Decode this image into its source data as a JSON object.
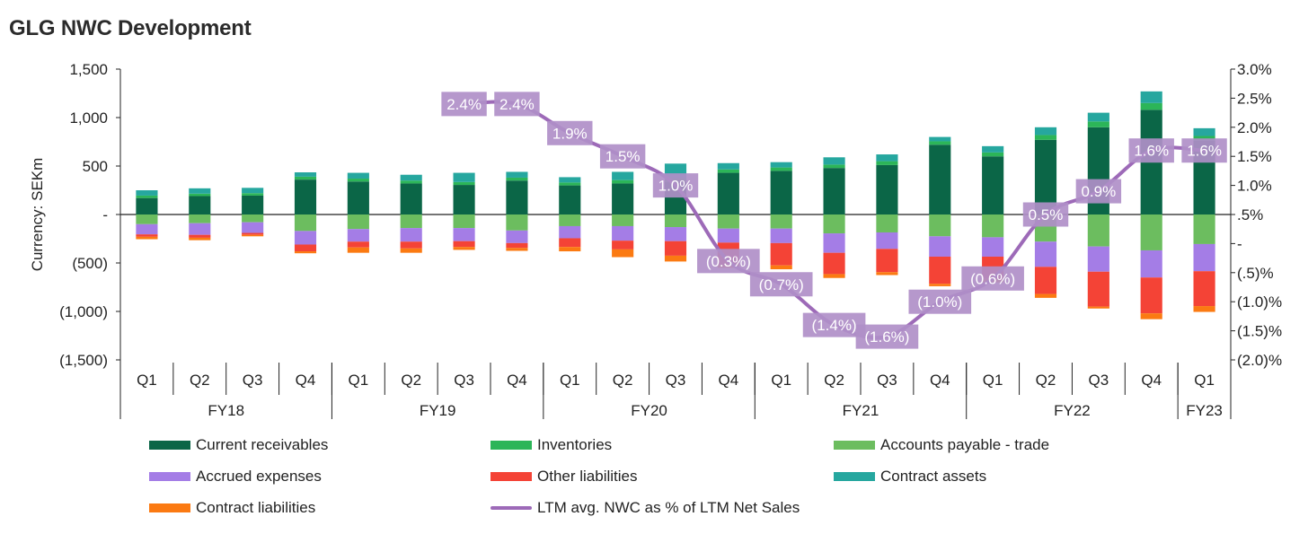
{
  "title": "GLG NWC Development",
  "chart_data": {
    "type": "bar",
    "stacked": true,
    "title": "GLG NWC Development",
    "ylabel": "Currency: SEKm",
    "ylim": [
      -1500,
      1500
    ],
    "y_ticks": [
      1500,
      1000,
      500,
      0,
      -500,
      -1000,
      -1500
    ],
    "y_tick_labels": [
      "1,500",
      "1,000",
      "500",
      "-",
      "(500)",
      "(1,000)",
      "(1,500)"
    ],
    "y2lim": [
      -2.0,
      3.0
    ],
    "y2_ticks": [
      3.0,
      2.5,
      2.0,
      1.5,
      1.0,
      0.5,
      0,
      -0.5,
      -1.0,
      -1.5,
      -2.0
    ],
    "y2_tick_labels": [
      "3.0%",
      "2.5%",
      "2.0%",
      "1.5%",
      "1.0%",
      ".5%",
      "-",
      "(.5)%",
      "(1.0)%",
      "(1.5)%",
      "(2.0)%"
    ],
    "categories": [
      "Q1",
      "Q2",
      "Q3",
      "Q4",
      "Q1",
      "Q2",
      "Q3",
      "Q4",
      "Q1",
      "Q2",
      "Q3",
      "Q4",
      "Q1",
      "Q2",
      "Q3",
      "Q4",
      "Q1",
      "Q2",
      "Q3",
      "Q4",
      "Q1"
    ],
    "year_groups": [
      {
        "label": "FY18",
        "count": 4
      },
      {
        "label": "FY19",
        "count": 4
      },
      {
        "label": "FY20",
        "count": 4
      },
      {
        "label": "FY21",
        "count": 4
      },
      {
        "label": "FY22",
        "count": 4
      },
      {
        "label": "FY23",
        "count": 1
      }
    ],
    "series": [
      {
        "name": "Current receivables",
        "color": "#0b6647",
        "values": [
          170,
          190,
          195,
          360,
          340,
          320,
          305,
          350,
          300,
          320,
          340,
          430,
          450,
          480,
          510,
          720,
          600,
          770,
          900,
          1080,
          760
        ]
      },
      {
        "name": "Inventories",
        "color": "#2cb558",
        "values": [
          25,
          25,
          25,
          30,
          30,
          30,
          30,
          30,
          30,
          35,
          35,
          35,
          35,
          35,
          40,
          35,
          40,
          50,
          60,
          70,
          50
        ]
      },
      {
        "name": "Contract assets",
        "color": "#26a79f",
        "values": [
          55,
          55,
          55,
          45,
          60,
          60,
          95,
          60,
          55,
          85,
          150,
          65,
          55,
          75,
          70,
          45,
          65,
          80,
          90,
          120,
          80
        ]
      },
      {
        "name": "Accounts payable - trade",
        "color": "#6cbd5f",
        "values": [
          -100,
          -90,
          -80,
          -170,
          -150,
          -140,
          -140,
          -165,
          -120,
          -120,
          -130,
          -145,
          -145,
          -195,
          -185,
          -225,
          -235,
          -280,
          -330,
          -370,
          -305
        ]
      },
      {
        "name": "Accrued expenses",
        "color": "#a47de6",
        "values": [
          -105,
          -120,
          -110,
          -140,
          -130,
          -140,
          -135,
          -130,
          -125,
          -150,
          -145,
          -145,
          -150,
          -200,
          -170,
          -210,
          -200,
          -260,
          -260,
          -280,
          -280
        ]
      },
      {
        "name": "Other liabilities",
        "color": "#f44336",
        "values": [
          -25,
          -30,
          -20,
          -70,
          -60,
          -70,
          -60,
          -50,
          -90,
          -90,
          -150,
          -230,
          -230,
          -220,
          -240,
          -280,
          -230,
          -280,
          -360,
          -370,
          -360
        ]
      },
      {
        "name": "Contract liabilities",
        "color": "#fb7a12",
        "values": [
          -25,
          -25,
          -15,
          -20,
          -55,
          -45,
          -30,
          -30,
          -45,
          -80,
          -60,
          -30,
          -40,
          -40,
          -30,
          -25,
          -35,
          -40,
          -20,
          -60,
          -60
        ]
      }
    ],
    "line": {
      "name": "LTM avg. NWC as % of LTM Net Sales",
      "color": "#9d6ab8",
      "start_index": 6,
      "values": [
        2.4,
        2.4,
        1.9,
        1.5,
        1.0,
        -0.3,
        -0.7,
        -1.4,
        -1.6,
        -1.0,
        -0.6,
        0.5,
        0.9,
        1.6,
        1.6
      ],
      "data_labels": [
        "2.4%",
        "2.4%",
        "1.9%",
        "1.5%",
        "1.0%",
        "(0.3%)",
        "(0.7%)",
        "(1.4%)",
        "(1.6%)",
        "(1.0%)",
        "(0.6%)",
        "0.5%",
        "0.9%",
        "1.6%",
        "1.6%"
      ]
    },
    "legend": {
      "position": "bottom",
      "entries": [
        "Current receivables",
        "Inventories",
        "Accounts payable - trade",
        "Accrued expenses",
        "Other liabilities",
        "Contract assets",
        "Contract liabilities",
        "LTM avg. NWC as % of LTM Net Sales"
      ]
    }
  }
}
